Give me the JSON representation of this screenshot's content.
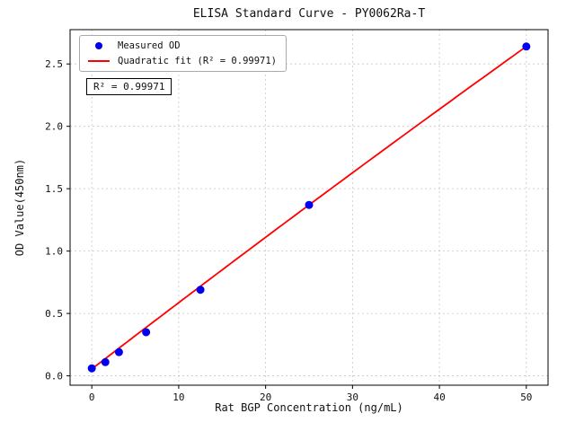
{
  "chart_data": {
    "type": "scatter",
    "title": "ELISA Standard Curve - PY0062Ra-T",
    "xlabel": "Rat BGP Concentration (ng/mL)",
    "ylabel": "OD Value(450nm)",
    "xlim": [
      -2.5,
      52.5
    ],
    "ylim": [
      -0.075,
      2.775
    ],
    "xticks": [
      0,
      10,
      20,
      30,
      40,
      50
    ],
    "xtick_labels": [
      "0",
      "10",
      "20",
      "30",
      "40",
      "50"
    ],
    "yticks": [
      0.0,
      0.5,
      1.0,
      1.5,
      2.0,
      2.5
    ],
    "ytick_labels": [
      "0.0",
      "0.5",
      "1.0",
      "1.5",
      "2.0",
      "2.5"
    ],
    "grid": true,
    "series": [
      {
        "name": "Measured OD",
        "type": "scatter",
        "color": "#0000ee",
        "x": [
          0,
          1.56,
          3.125,
          6.25,
          12.5,
          25,
          50
        ],
        "y": [
          0.06,
          0.11,
          0.19,
          0.35,
          0.69,
          1.37,
          2.64
        ]
      },
      {
        "name": "Quadratic fit (R² = 0.99971)",
        "type": "line",
        "color": "#ff0000",
        "coefficients": [
          0.055,
          0.0535,
          -3.6e-05
        ],
        "x_range": [
          0,
          50
        ]
      }
    ],
    "legend": {
      "position": "upper left",
      "items": [
        {
          "label": "Measured OD",
          "marker": "dot",
          "color": "#0000ee"
        },
        {
          "label": "Quadratic fit (R² = 0.99971)",
          "marker": "line",
          "color": "#ff0000"
        }
      ]
    },
    "annotation": "R² = 0.99971",
    "r_squared": 0.99971
  }
}
